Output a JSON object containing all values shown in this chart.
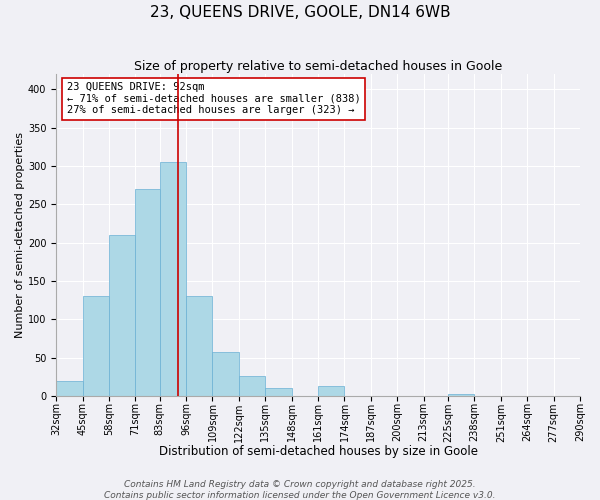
{
  "title": "23, QUEENS DRIVE, GOOLE, DN14 6WB",
  "subtitle": "Size of property relative to semi-detached houses in Goole",
  "xlabel": "Distribution of semi-detached houses by size in Goole",
  "ylabel": "Number of semi-detached properties",
  "bin_labels": [
    "32sqm",
    "45sqm",
    "58sqm",
    "71sqm",
    "83sqm",
    "96sqm",
    "109sqm",
    "122sqm",
    "135sqm",
    "148sqm",
    "161sqm",
    "174sqm",
    "187sqm",
    "200sqm",
    "213sqm",
    "225sqm",
    "238sqm",
    "251sqm",
    "264sqm",
    "277sqm",
    "290sqm"
  ],
  "bin_edges": [
    32,
    45,
    58,
    71,
    83,
    96,
    109,
    122,
    135,
    148,
    161,
    174,
    187,
    200,
    213,
    225,
    238,
    251,
    264,
    277,
    290
  ],
  "bar_heights": [
    20,
    130,
    210,
    270,
    305,
    130,
    57,
    26,
    11,
    0,
    13,
    0,
    0,
    0,
    0,
    3,
    0,
    0,
    0,
    0
  ],
  "bar_color": "#add8e6",
  "bar_edge_color": "#6ab0d4",
  "vline_x": 92,
  "vline_color": "#cc0000",
  "annotation_text": "23 QUEENS DRIVE: 92sqm\n← 71% of semi-detached houses are smaller (838)\n27% of semi-detached houses are larger (323) →",
  "annotation_box_color": "white",
  "annotation_box_edge_color": "#cc0000",
  "ylim": [
    0,
    420
  ],
  "xlim": [
    32,
    290
  ],
  "yticks": [
    0,
    50,
    100,
    150,
    200,
    250,
    300,
    350,
    400
  ],
  "background_color": "#f0f0f5",
  "footnote": "Contains HM Land Registry data © Crown copyright and database right 2025.\nContains public sector information licensed under the Open Government Licence v3.0.",
  "title_fontsize": 11,
  "subtitle_fontsize": 9,
  "xlabel_fontsize": 8.5,
  "ylabel_fontsize": 8,
  "annotation_fontsize": 7.5,
  "tick_fontsize": 7,
  "footnote_fontsize": 6.5
}
